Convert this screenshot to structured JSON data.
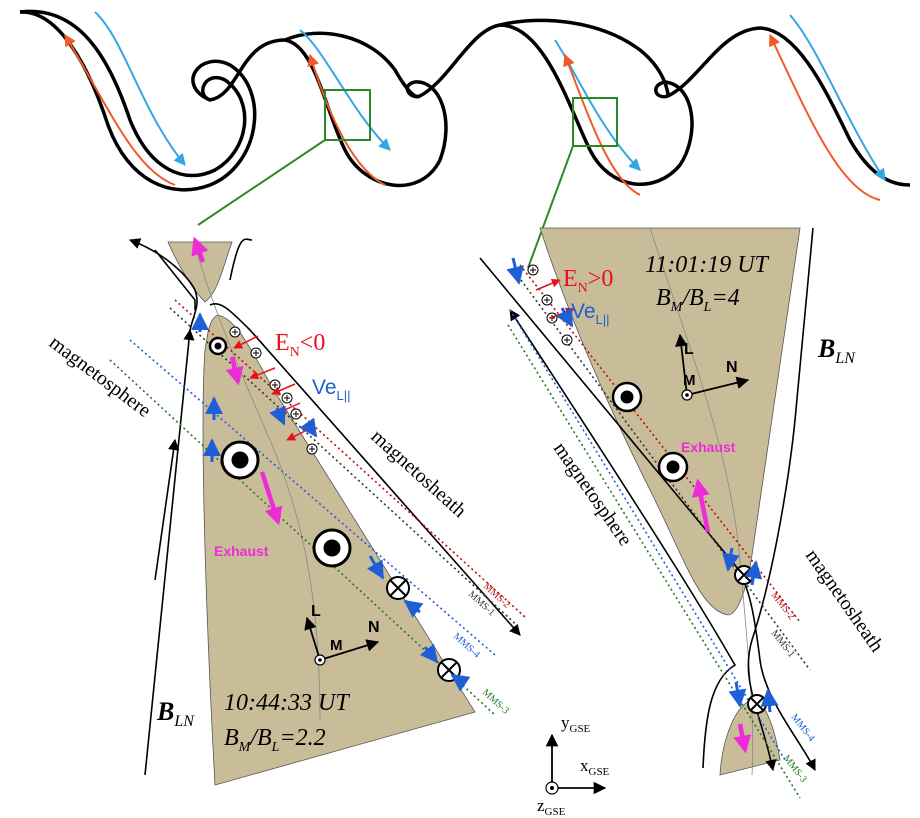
{
  "colors": {
    "exhaust_fill": "#c9bd99",
    "blue_flow": "#33a6e6",
    "red_flow": "#f05a28",
    "electric_field": "#e8101a",
    "electron_velocity": "#1f5fd6",
    "magenta": "#ee2bd8",
    "box_green": "#2a8a2a",
    "mms1": "#333333",
    "mms2": "#b80f0f",
    "mms3": "#1f7a1f",
    "mms4": "#1f5fd6"
  },
  "left_panel": {
    "time": "10:44:33 UT",
    "ratio_lhs": "B",
    "ratio_lhs_sub": "M",
    "ratio_mid": "/B",
    "ratio_mid_sub": "L",
    "ratio_rhs": "=2.2",
    "efield_main": "E",
    "efield_sub": "N",
    "efield_rest": "<0",
    "ve_main": "Ve",
    "ve_sub": "L||",
    "exhaust": "Exhaust",
    "magnetosphere": "magnetosphere",
    "magnetosheath": "magnetosheath",
    "bln_main": "B",
    "bln_sub": "LN",
    "axis_L": "L",
    "axis_M": "M",
    "axis_N": "N",
    "mms_labels": [
      "MMS-2",
      "MMS-1",
      "MMS-4",
      "MMS-3"
    ]
  },
  "right_panel": {
    "time": "11:01:19 UT",
    "ratio_lhs": "B",
    "ratio_lhs_sub": "M",
    "ratio_mid": "/B",
    "ratio_mid_sub": "L",
    "ratio_rhs": "=4",
    "efield_main": "E",
    "efield_sub": "N",
    "efield_rest": ">0",
    "ve_main": "Ve",
    "ve_sub": "L||",
    "exhaust": "Exhaust",
    "magnetosphere": "magnetosphere",
    "magnetosheath": "magnetosheath",
    "bln_main": "B",
    "bln_sub": "LN",
    "axis_L": "L",
    "axis_M": "M",
    "axis_N": "N",
    "mms_labels": [
      "MMS-2",
      "MMS-1",
      "MMS-4",
      "MMS-3"
    ]
  },
  "gse": {
    "y_main": "y",
    "y_sub": "GSE",
    "x_main": "x",
    "x_sub": "GSE",
    "z_main": "z",
    "z_sub": "GSE"
  }
}
